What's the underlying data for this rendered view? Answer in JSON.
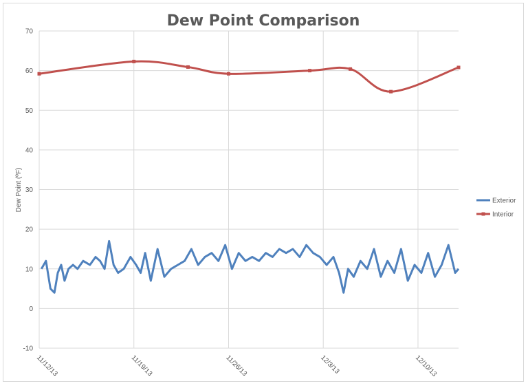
{
  "chart_data": {
    "type": "line",
    "title": "Dew Point Comparison",
    "xlabel": "",
    "ylabel": "Dew Point (ºF)",
    "ylim": [
      -10,
      70
    ],
    "yticks": [
      -10,
      0,
      10,
      20,
      30,
      40,
      50,
      60,
      70
    ],
    "xlim": [
      "2013-11-12",
      "2013-12-13"
    ],
    "xticks": [
      "11/12/13",
      "11/19/13",
      "11/26/13",
      "12/3/13",
      "12/10/13"
    ],
    "grid": true,
    "legend_position": "right",
    "series": [
      {
        "name": "Exterior",
        "color": "#4f81bd",
        "x": [
          "2013-11-12",
          "2013-11-12",
          "2013-11-12",
          "2013-11-13",
          "2013-11-13",
          "2013-11-13",
          "2013-11-13",
          "2013-11-14",
          "2013-11-14",
          "2013-11-14",
          "2013-11-15",
          "2013-11-15",
          "2013-11-16",
          "2013-11-16",
          "2013-11-16",
          "2013-11-17",
          "2013-11-17",
          "2013-11-17",
          "2013-11-18",
          "2013-11-18",
          "2013-11-19",
          "2013-11-19",
          "2013-11-19",
          "2013-11-20",
          "2013-11-20",
          "2013-11-21",
          "2013-11-21",
          "2013-11-22",
          "2013-11-22",
          "2013-11-23",
          "2013-11-23",
          "2013-11-24",
          "2013-11-24",
          "2013-11-25",
          "2013-11-25",
          "2013-11-26",
          "2013-11-26",
          "2013-11-27",
          "2013-11-27",
          "2013-11-28",
          "2013-11-28",
          "2013-11-29",
          "2013-11-29",
          "2013-11-30",
          "2013-11-30",
          "2013-12-01",
          "2013-12-01",
          "2013-12-02",
          "2013-12-02",
          "2013-12-03",
          "2013-12-03",
          "2013-12-04",
          "2013-12-04",
          "2013-12-04",
          "2013-12-05",
          "2013-12-05",
          "2013-12-06",
          "2013-12-06",
          "2013-12-07",
          "2013-12-07",
          "2013-12-08",
          "2013-12-08",
          "2013-12-09",
          "2013-12-09",
          "2013-12-10",
          "2013-12-10",
          "2013-12-11",
          "2013-12-11",
          "2013-12-12",
          "2013-12-12",
          "2013-12-13"
        ],
        "values": [
          10,
          12,
          5,
          4,
          9,
          11,
          7,
          10,
          11,
          10,
          12,
          11,
          13,
          12,
          10,
          17,
          11,
          9,
          10,
          13,
          11,
          9,
          14,
          7,
          15,
          8,
          10,
          11,
          12,
          15,
          11,
          13,
          14,
          12,
          16,
          10,
          14,
          12,
          13,
          12,
          14,
          13,
          15,
          14,
          15,
          13,
          16,
          14,
          13,
          11,
          13,
          9,
          4,
          10,
          8,
          12,
          10,
          15,
          8,
          12,
          9,
          15,
          7,
          11,
          9,
          14,
          8,
          11,
          16,
          9,
          10
        ]
      },
      {
        "name": "Interior",
        "color": "#c0504d",
        "x": [
          "2013-11-12",
          "2013-11-19",
          "2013-11-23",
          "2013-11-26",
          "2013-12-02",
          "2013-12-05",
          "2013-12-08",
          "2013-12-13"
        ],
        "values": [
          59.2,
          62.3,
          60.9,
          59.2,
          60.0,
          60.4,
          54.7,
          60.8
        ]
      }
    ]
  }
}
